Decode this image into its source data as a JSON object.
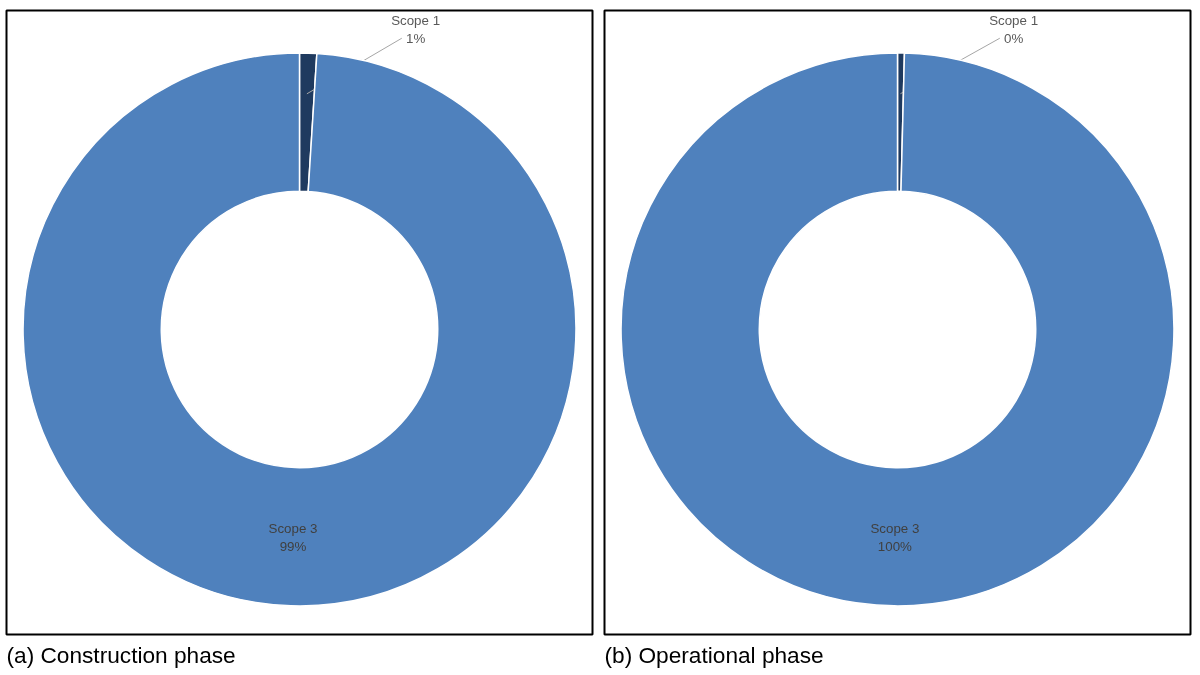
{
  "chart_data": [
    {
      "type": "donut",
      "title": "(a)    Construction phase",
      "categories": [
        "Scope 1",
        "Scope 3"
      ],
      "values": [
        1,
        99
      ],
      "value_labels": [
        "1%",
        "99%"
      ],
      "colors": [
        "#1f3a5f",
        "#4f81bd"
      ]
    },
    {
      "type": "donut",
      "title": "(b)    Operational phase",
      "categories": [
        "Scope 1",
        "Scope 3"
      ],
      "values": [
        0.4,
        99.6
      ],
      "value_labels": [
        "0%",
        "100%"
      ],
      "colors": [
        "#1f3a5f",
        "#4f81bd"
      ]
    }
  ]
}
